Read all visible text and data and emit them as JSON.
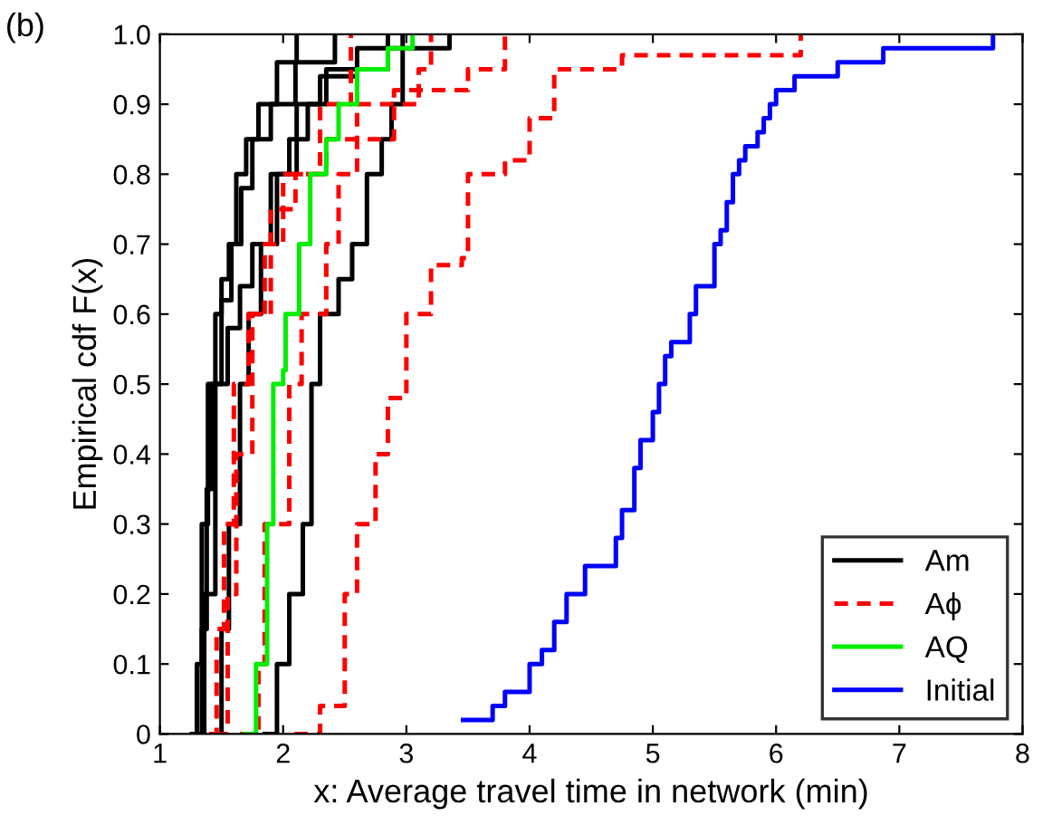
{
  "chart_data": {
    "type": "step",
    "xlabel": "x: Average travel time in network (min)",
    "ylabel": "Empirical cdf F(x)",
    "annotations": [
      "(b)"
    ],
    "xlim": [
      1,
      8
    ],
    "xticks": [
      1,
      2,
      3,
      4,
      5,
      6,
      7,
      8
    ],
    "ylim": [
      0,
      1
    ],
    "yticks": [
      0,
      0.1,
      0.2,
      0.3,
      0.4,
      0.5,
      0.6,
      0.7,
      0.8,
      0.9,
      {
        "value": 1,
        "label": "1.0"
      }
    ],
    "grid": false,
    "legend": "bottom right",
    "line_style": "solid",
    "series": [
      {
        "name": "Am",
        "color": "#000000",
        "x": [
          1.26,
          1.3,
          1.34,
          1.39,
          1.45,
          1.5,
          1.56,
          1.62,
          1.7,
          1.8,
          1.95,
          2.11
        ],
        "values": [
          0,
          0.1,
          0.3,
          0.5,
          0.6,
          0.65,
          0.7,
          0.8,
          0.85,
          0.9,
          0.96,
          1.0
        ]
      },
      {
        "color": "#000000",
        "x": [
          1.3,
          1.34,
          1.38,
          1.42,
          1.5,
          1.58,
          1.66,
          1.75,
          1.9,
          2.1,
          2.42
        ],
        "values": [
          0,
          0.15,
          0.35,
          0.5,
          0.62,
          0.7,
          0.78,
          0.85,
          0.9,
          0.96,
          1.0
        ]
      },
      {
        "color": "#000000",
        "x": [
          1.43,
          1.5,
          1.56,
          1.65,
          1.72,
          1.82,
          1.95,
          2.11,
          2.3,
          2.6,
          3.35
        ],
        "values": [
          0,
          0.15,
          0.3,
          0.5,
          0.6,
          0.7,
          0.8,
          0.9,
          0.94,
          0.98,
          1.0
        ]
      },
      {
        "color": "#000000",
        "x": [
          1.85,
          1.95,
          2.05,
          2.16,
          2.23,
          2.3,
          2.45,
          2.56,
          2.68,
          2.8,
          2.88,
          2.97
        ],
        "values": [
          0,
          0.1,
          0.2,
          0.3,
          0.5,
          0.6,
          0.65,
          0.7,
          0.8,
          0.85,
          0.9,
          1.0
        ]
      },
      {
        "color": "#000000",
        "x": [
          1.3,
          1.36,
          1.45,
          1.55,
          1.65,
          1.75,
          1.9,
          2.05,
          2.2,
          2.35,
          2.85
        ],
        "values": [
          0,
          0.2,
          0.5,
          0.58,
          0.64,
          0.7,
          0.8,
          0.85,
          0.9,
          0.95,
          1.0
        ]
      },
      {
        "name": "Aϕ",
        "color": "#ff0000",
        "line_style": "dashed",
        "x": [
          1.4,
          1.46,
          1.52,
          1.6,
          1.72,
          1.85,
          2.0,
          2.3,
          2.55
        ],
        "values": [
          0,
          0.15,
          0.3,
          0.5,
          0.6,
          0.7,
          0.8,
          0.9,
          1.0
        ]
      },
      {
        "color": "#ff0000",
        "line_style": "dashed",
        "x": [
          1.65,
          1.8,
          1.85,
          2.05,
          2.15,
          2.35,
          2.45,
          2.6,
          3.1,
          3.2
        ],
        "values": [
          0,
          0.1,
          0.3,
          0.5,
          0.6,
          0.7,
          0.8,
          0.9,
          0.95,
          1.0
        ]
      },
      {
        "color": "#ff0000",
        "line_style": "dashed",
        "x": [
          2.09,
          2.3,
          2.5,
          2.6,
          2.75,
          2.85,
          3.0,
          3.2,
          3.45,
          3.5,
          3.8,
          4.0,
          4.2,
          4.75,
          6.2
        ],
        "values": [
          0,
          0.04,
          0.2,
          0.3,
          0.4,
          0.48,
          0.6,
          0.67,
          0.68,
          0.8,
          0.82,
          0.88,
          0.95,
          0.97,
          1.0
        ]
      },
      {
        "color": "#ff0000",
        "line_style": "dashed",
        "x": [
          1.45,
          1.55,
          1.62,
          1.75,
          1.9,
          2.1,
          2.35,
          2.9,
          3.5,
          3.8
        ],
        "values": [
          0,
          0.2,
          0.4,
          0.6,
          0.75,
          0.8,
          0.85,
          0.92,
          0.95,
          1.0
        ]
      },
      {
        "name": "AQ",
        "color": "#00ee00",
        "x": [
          1.69,
          1.78,
          1.87,
          1.92,
          2.0,
          2.02,
          2.13,
          2.22,
          2.35,
          2.45,
          2.6,
          2.85,
          3.05
        ],
        "values": [
          0,
          0.1,
          0.3,
          0.5,
          0.52,
          0.6,
          0.7,
          0.8,
          0.85,
          0.9,
          0.95,
          0.98,
          1.0
        ]
      },
      {
        "name": "Initial",
        "color": "#0000ff",
        "x": [
          3.46,
          3.7,
          3.8,
          4.0,
          4.1,
          4.2,
          4.3,
          4.45,
          4.7,
          4.75,
          4.85,
          4.9,
          5.0,
          5.05,
          5.1,
          5.15,
          5.3,
          5.35,
          5.5,
          5.55,
          5.6,
          5.65,
          5.7,
          5.75,
          5.85,
          5.9,
          5.95,
          6.0,
          6.15,
          6.5,
          6.87,
          7.76
        ],
        "values": [
          0.02,
          0.04,
          0.06,
          0.1,
          0.12,
          0.16,
          0.2,
          0.24,
          0.28,
          0.32,
          0.38,
          0.42,
          0.46,
          0.5,
          0.54,
          0.56,
          0.6,
          0.64,
          0.7,
          0.72,
          0.76,
          0.8,
          0.82,
          0.84,
          0.86,
          0.88,
          0.9,
          0.92,
          0.94,
          0.96,
          0.98,
          1.0
        ]
      }
    ]
  }
}
